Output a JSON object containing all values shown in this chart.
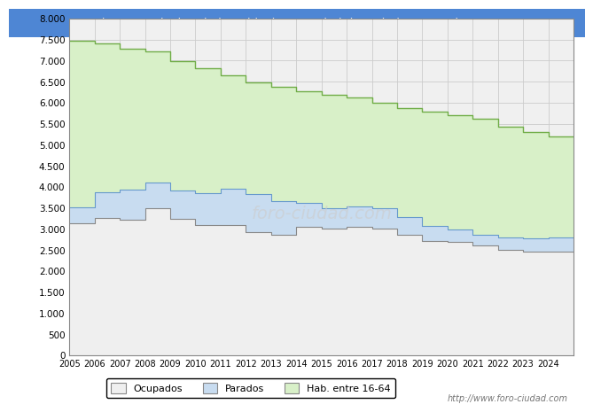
{
  "title": "Tineo - Evolucion de la poblacion en edad de Trabajar Mayo de 2024",
  "title_bg": "#4e86d4",
  "title_color": "white",
  "years": [
    2005,
    2006,
    2007,
    2008,
    2009,
    2010,
    2011,
    2012,
    2013,
    2014,
    2015,
    2016,
    2017,
    2018,
    2019,
    2020,
    2021,
    2022,
    2023,
    2024
  ],
  "hab_16_64": [
    7460,
    7400,
    7270,
    7220,
    6990,
    6810,
    6640,
    6490,
    6370,
    6270,
    6190,
    6130,
    6000,
    5870,
    5780,
    5700,
    5620,
    5430,
    5300,
    5200
  ],
  "ocupados": [
    3140,
    3270,
    3220,
    3500,
    3230,
    3100,
    3100,
    2920,
    2870,
    3050,
    3000,
    3050,
    3000,
    2870,
    2720,
    2700,
    2600,
    2500,
    2470,
    2470
  ],
  "parados": [
    380,
    600,
    720,
    600,
    680,
    750,
    850,
    900,
    800,
    570,
    500,
    480,
    500,
    420,
    350,
    280,
    260,
    290,
    310,
    320
  ],
  "color_hab": "#d8f0c8",
  "color_ocupados": "#efefef",
  "color_parados": "#c8dcf0",
  "color_line_hab": "#70ad47",
  "color_line_ocup": "#888888",
  "color_line_parados": "#6699cc",
  "ylim": [
    0,
    8000
  ],
  "ytick_max": 8000,
  "ytick_step": 500,
  "watermark": "http://www.foro-ciudad.com",
  "legend_labels": [
    "Ocupados",
    "Parados",
    "Hab. entre 16-64"
  ],
  "bg_color": "#f0f0f0",
  "plot_bg": "#f0f0f0"
}
